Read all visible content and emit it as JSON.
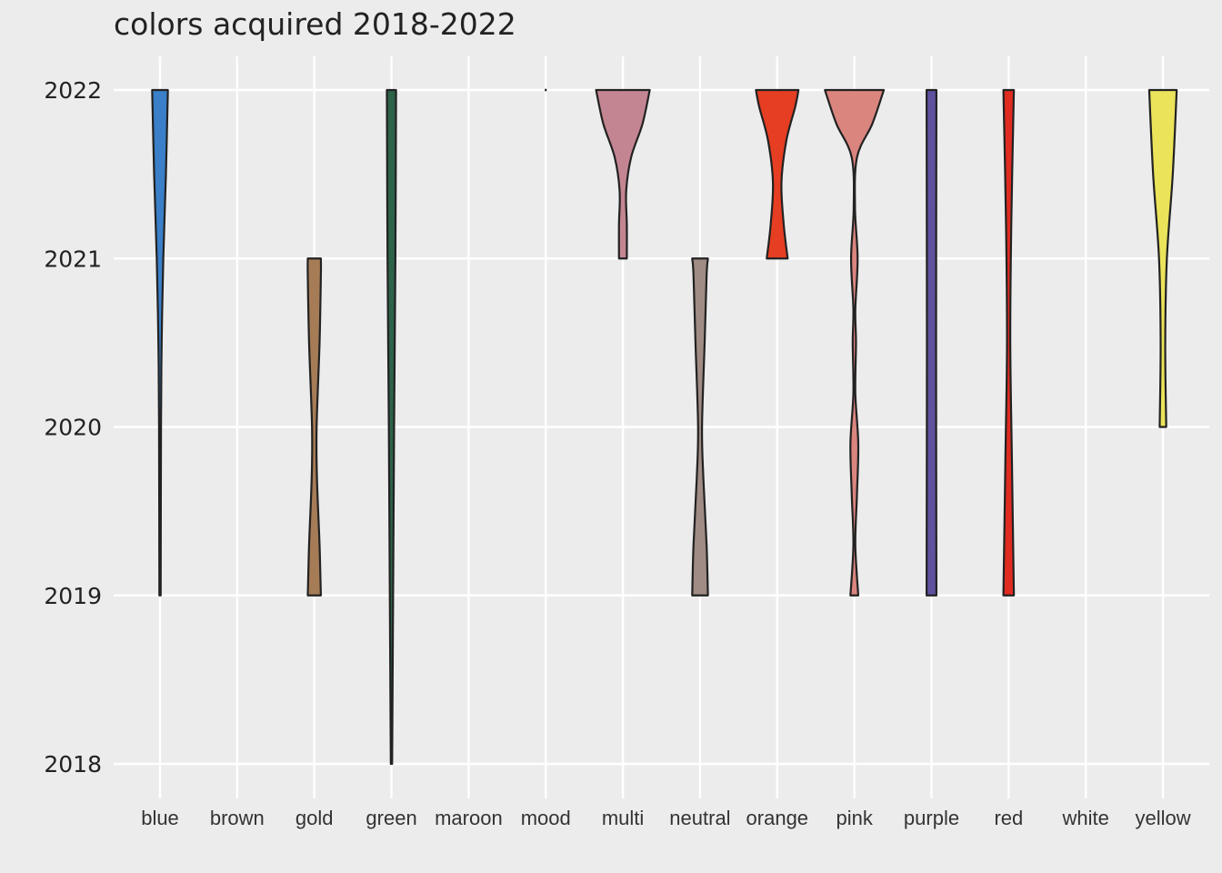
{
  "chart_data": {
    "type": "violin",
    "title": "colors acquired 2018-2022",
    "xlabel": "",
    "ylabel": "",
    "categories": [
      "blue",
      "brown",
      "gold",
      "green",
      "maroon",
      "mood",
      "multi",
      "neutral",
      "orange",
      "pink",
      "purple",
      "red",
      "white",
      "yellow"
    ],
    "y_ticks": [
      2018,
      2019,
      2020,
      2021,
      2022
    ],
    "ylim": [
      2018,
      2022
    ],
    "grid": true,
    "background": "#ececec",
    "gridline_color": "#ffffff",
    "outline_color": "#222222",
    "violins": [
      {
        "category": "blue",
        "color": "#3a7fc8",
        "min": 2019,
        "max": 2022,
        "profile": [
          [
            2019,
            0.02
          ],
          [
            2020,
            0.03
          ],
          [
            2020.5,
            0.05
          ],
          [
            2021,
            0.1
          ],
          [
            2021.5,
            0.18
          ],
          [
            2022,
            0.24
          ]
        ]
      },
      {
        "category": "gold",
        "color": "#a67c57",
        "min": 2019,
        "max": 2021,
        "profile": [
          [
            2019,
            0.2
          ],
          [
            2019.3,
            0.16
          ],
          [
            2019.7,
            0.08
          ],
          [
            2020,
            0.07
          ],
          [
            2020.5,
            0.16
          ],
          [
            2020.9,
            0.2
          ],
          [
            2021,
            0.2
          ]
        ]
      },
      {
        "category": "green",
        "color": "#2d6349",
        "min": 2018,
        "max": 2022,
        "profile": [
          [
            2018,
            0.02
          ],
          [
            2019,
            0.05
          ],
          [
            2020,
            0.08
          ],
          [
            2021,
            0.12
          ],
          [
            2022,
            0.14
          ]
        ]
      },
      {
        "category": "mood",
        "color": "#111111",
        "min": 2022,
        "max": 2022,
        "profile": [
          [
            2022,
            0.01
          ]
        ]
      },
      {
        "category": "multi",
        "color": "#c48592",
        "min": 2021,
        "max": 2022,
        "profile": [
          [
            2021,
            0.12
          ],
          [
            2021.2,
            0.12
          ],
          [
            2021.4,
            0.1
          ],
          [
            2021.6,
            0.25
          ],
          [
            2021.8,
            0.6
          ],
          [
            2022,
            0.82
          ]
        ]
      },
      {
        "category": "neutral",
        "color": "#a08c84",
        "min": 2019,
        "max": 2021,
        "profile": [
          [
            2019,
            0.24
          ],
          [
            2019.3,
            0.2
          ],
          [
            2019.7,
            0.1
          ],
          [
            2020,
            0.06
          ],
          [
            2020.5,
            0.14
          ],
          [
            2020.9,
            0.2
          ],
          [
            2021,
            0.24
          ]
        ]
      },
      {
        "category": "orange",
        "color": "#e63e22",
        "min": 2021,
        "max": 2022,
        "profile": [
          [
            2021,
            0.32
          ],
          [
            2021.2,
            0.2
          ],
          [
            2021.45,
            0.13
          ],
          [
            2021.7,
            0.28
          ],
          [
            2021.9,
            0.55
          ],
          [
            2022,
            0.65
          ]
        ]
      },
      {
        "category": "pink",
        "color": "#da857e",
        "min": 2019,
        "max": 2022,
        "profile": [
          [
            2019,
            0.12
          ],
          [
            2019.3,
            0.03
          ],
          [
            2019.6,
            0.08
          ],
          [
            2019.9,
            0.12
          ],
          [
            2020.2,
            0.03
          ],
          [
            2020.5,
            0.05
          ],
          [
            2020.7,
            0.03
          ],
          [
            2021,
            0.1
          ],
          [
            2021.3,
            0.02
          ],
          [
            2021.6,
            0.08
          ],
          [
            2021.8,
            0.55
          ],
          [
            2022,
            0.9
          ]
        ]
      },
      {
        "category": "purple",
        "color": "#5f519e",
        "min": 2019,
        "max": 2022,
        "profile": [
          [
            2019,
            0.15
          ],
          [
            2020.5,
            0.14
          ],
          [
            2022,
            0.15
          ]
        ]
      },
      {
        "category": "red",
        "color": "#e02b20",
        "min": 2019,
        "max": 2022,
        "profile": [
          [
            2019,
            0.16
          ],
          [
            2019.8,
            0.1
          ],
          [
            2020.5,
            0.05
          ],
          [
            2021.2,
            0.08
          ],
          [
            2022,
            0.16
          ]
        ]
      },
      {
        "category": "yellow",
        "color": "#ebe35a",
        "min": 2020,
        "max": 2022,
        "profile": [
          [
            2020,
            0.1
          ],
          [
            2020.5,
            0.07
          ],
          [
            2021,
            0.12
          ],
          [
            2021.5,
            0.3
          ],
          [
            2022,
            0.42
          ]
        ]
      }
    ]
  }
}
